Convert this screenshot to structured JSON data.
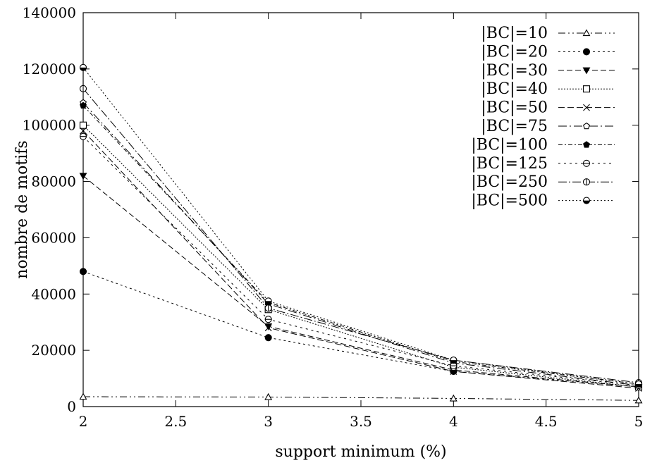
{
  "chart_data": {
    "type": "line",
    "title": "",
    "xlabel": "support minimum (%)",
    "ylabel": "nombre de motifs",
    "xlim": [
      2,
      5
    ],
    "ylim": [
      0,
      140000
    ],
    "x_ticks": [
      2,
      2.5,
      3,
      3.5,
      4,
      4.5,
      5
    ],
    "x_tick_labels": [
      "2",
      "2.5",
      "3",
      "3.5",
      "4",
      "4.5",
      "5"
    ],
    "y_ticks": [
      0,
      20000,
      40000,
      60000,
      80000,
      100000,
      120000,
      140000
    ],
    "y_tick_labels": [
      "0",
      "20000",
      "40000",
      "60000",
      "80000",
      "100000",
      "120000",
      "140000"
    ],
    "grid": false,
    "legend_position": "top-right",
    "x": [
      2,
      3,
      4,
      5
    ],
    "series": [
      {
        "name": "|BC|=10",
        "values": [
          3500,
          3400,
          2900,
          2200
        ],
        "marker": "triangle",
        "dash": "10,4,2,4,2,4"
      },
      {
        "name": "|BC|=20",
        "values": [
          48000,
          24500,
          12500,
          7000
        ],
        "marker": "filled-circle",
        "dash": "3,4"
      },
      {
        "name": "|BC|=30",
        "values": [
          82000,
          28500,
          13000,
          7000
        ],
        "marker": "filled-triangle-down",
        "dash": "8,4"
      },
      {
        "name": "|BC|=40",
        "values": [
          100000,
          34500,
          14000,
          7000
        ],
        "marker": "square",
        "dash": "2,2"
      },
      {
        "name": "|BC|=50",
        "values": [
          98000,
          28000,
          12500,
          6500
        ],
        "marker": "cross",
        "dash": "9,4"
      },
      {
        "name": "|BC|=75",
        "values": [
          108000,
          36500,
          15500,
          7500
        ],
        "marker": "pentagon",
        "dash": "12,4,2,4"
      },
      {
        "name": "|BC|=100",
        "values": [
          107000,
          37000,
          16000,
          8000
        ],
        "marker": "filled-pentagon",
        "dash": "6,3,2,3"
      },
      {
        "name": "|BC|=125",
        "values": [
          96000,
          31000,
          14500,
          7500
        ],
        "marker": "circle-half-h",
        "dash": "3,5"
      },
      {
        "name": "|BC|=250",
        "values": [
          113000,
          35000,
          16500,
          8500
        ],
        "marker": "circle-half-v",
        "dash": "12,3,2,3"
      },
      {
        "name": "|BC|=500",
        "values": [
          120500,
          37500,
          16500,
          8000
        ],
        "marker": "circle-half-d",
        "dash": "2,3"
      }
    ]
  }
}
